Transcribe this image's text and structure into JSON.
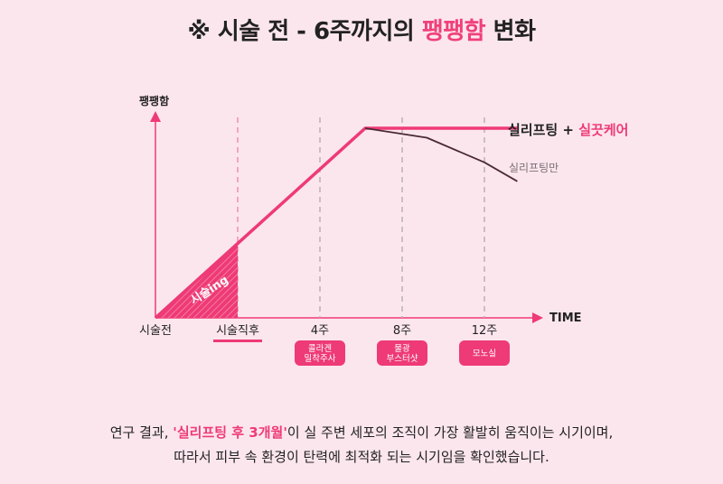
{
  "title": {
    "prefix": "※ 시술 전 - 6주까지의 ",
    "highlight": "팽팽함",
    "suffix": " 변화"
  },
  "chart_data": {
    "type": "line",
    "ylabel": "팽팽함",
    "xlabel": "TIME",
    "x_ticks": [
      "시술전",
      "시술직후",
      "4주",
      "8주",
      "12주"
    ],
    "treatment_badges": [
      {
        "at": "4주",
        "lines": [
          "콜라겐",
          "밀착주사"
        ]
      },
      {
        "at": "8주",
        "lines": [
          "물광",
          "부스터샷"
        ]
      },
      {
        "at": "12주",
        "lines": [
          "모노실"
        ]
      }
    ],
    "shaded_region_label": "시술ing",
    "series": [
      {
        "name_main": "실리프팅 + ",
        "name_accent": "실끗케어",
        "color": "#ee3a76",
        "points": [
          [
            0,
            0
          ],
          [
            2.55,
            1.0
          ],
          [
            4.4,
            1.0
          ]
        ]
      },
      {
        "name": "실리프팅만",
        "color": "#4a2a36",
        "points": [
          [
            2.55,
            1.0
          ],
          [
            3.3,
            0.95
          ],
          [
            4.0,
            0.82
          ],
          [
            4.4,
            0.72
          ]
        ]
      }
    ]
  },
  "caption": {
    "line1_pre": "연구 결과, ",
    "line1_highlight": "'실리프팅 후 3개월'",
    "line1_post": "이 실 주변 세포의 조직이 가장 활발히 움직이는 시기이며,",
    "line2": "따라서 피부 속 환경이 탄력에 최적화 되는 시기임을 확인했습니다."
  }
}
